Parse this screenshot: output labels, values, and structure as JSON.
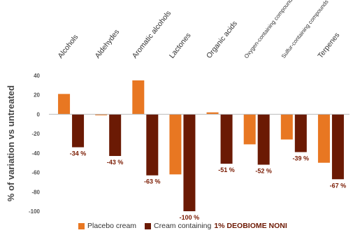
{
  "colors": {
    "placebo": "#E87722",
    "deobiome": "#6B1A04",
    "axis": "#bbbbbb"
  },
  "legend": {
    "placebo_label": "Placebo cream",
    "deobiome_label_prefix": "Cream containing",
    "deobiome_label_bold": "1% DEOBIOME NONI"
  },
  "chart_data": {
    "type": "bar",
    "ylabel": "% of variation vs untreated",
    "ylim": [
      -100,
      40
    ],
    "yticks": [
      40,
      20,
      0,
      -20,
      -40,
      -60,
      -80,
      -100
    ],
    "categories": [
      "Alcohols",
      "Aldehydes",
      "Aromatic alcohols",
      "Lactones",
      "Organic acids",
      "Oxygen-containing compounds",
      "Sulfur-containing compounds",
      "Terpenes"
    ],
    "series": [
      {
        "name": "Placebo cream",
        "values": [
          21,
          -1,
          35,
          -62,
          2,
          -31,
          -26,
          -50
        ]
      },
      {
        "name": "Cream containing 1% DEOBIOME NONI",
        "values": [
          -34,
          -43,
          -63,
          -100,
          -51,
          -52,
          -39,
          -67
        ],
        "labels": [
          "-34 %",
          "-43 %",
          "-63 %",
          "-100 %",
          "-51 %",
          "-52 %",
          "-39 %",
          "-67 %"
        ]
      }
    ]
  }
}
